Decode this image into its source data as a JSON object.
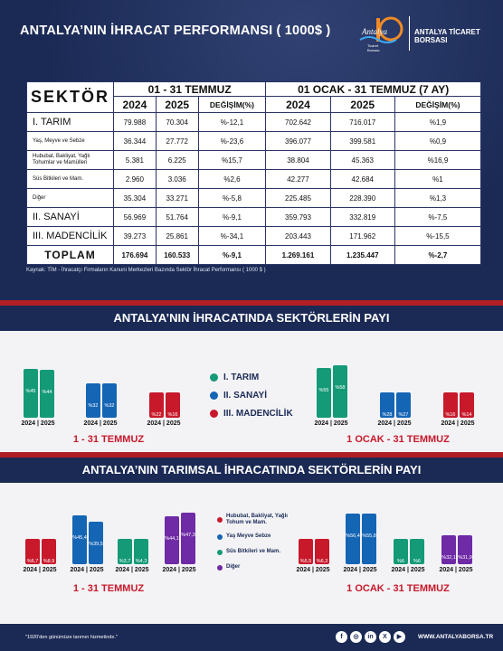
{
  "header": {
    "title": "ANTALYA’NIN İHRACAT PERFORMANSI ( 1000$ )",
    "org_name": "ANTALYA TİCARET BORSASI"
  },
  "table": {
    "sector_label": "SEKTÖR",
    "period1": "01 - 31 TEMMUZ",
    "period2": "01 OCAK - 31 TEMMUZ (7 AY)",
    "col_2024": "2024",
    "col_2025": "2025",
    "col_change": "DEĞİŞİM(%)",
    "rows": [
      {
        "name": "I. TARIM",
        "a": "79.988",
        "b": "70.304",
        "c": "%-12,1",
        "d": "702.642",
        "e": "716.017",
        "f": "%1,9"
      },
      {
        "name": "Yaş, Meyve ve Sebze",
        "a": "36.344",
        "b": "27.772",
        "c": "%-23,6",
        "d": "396.077",
        "e": "399.581",
        "f": "%0,9"
      },
      {
        "name": "Hububat, Bakliyat, Yağlı Tohumlar ve Mamülleri",
        "a": "5.381",
        "b": "6.225",
        "c": "%15,7",
        "d": "38.804",
        "e": "45.363",
        "f": "%16,9"
      },
      {
        "name": "Süs Bitkileri ve Mam.",
        "a": "2.960",
        "b": "3.036",
        "c": "%2,6",
        "d": "42.277",
        "e": "42.684",
        "f": "%1"
      },
      {
        "name": "Diğer",
        "a": "35.304",
        "b": "33.271",
        "c": "%-5,8",
        "d": "225.485",
        "e": "228.390",
        "f": "%1,3"
      },
      {
        "name": "II. SANAYİ",
        "a": "56.969",
        "b": "51.764",
        "c": "%-9,1",
        "d": "359.793",
        "e": "332.819",
        "f": "%-7,5"
      },
      {
        "name": "III. MADENCİLİK",
        "a": "39.273",
        "b": "25.861",
        "c": "%-34,1",
        "d": "203.443",
        "e": "171.962",
        "f": "%-15,5"
      }
    ],
    "total": {
      "name": "TOPLAM",
      "a": "176.694",
      "b": "160.533",
      "c": "%-9,1",
      "d": "1.269.161",
      "e": "1.235.447",
      "f": "%-2,7"
    }
  },
  "source": "Kaynak: TİM - İhracatçı Firmaların Kanuni Merkezleri Bazında Sektör İhracat Performansı ( 1000 $ )",
  "section1": {
    "title": "ANTALYA’NIN İHRACATINDA SEKTÖRLERİN PAYI",
    "legend": [
      "I. TARIM",
      "II. SANAYİ",
      "III. MADENCİLİK"
    ],
    "year_label": "2024 | 2025",
    "cap_left": "1 - 31 TEMMUZ",
    "cap_right": "1 OCAK - 31 TEMMUZ",
    "left": [
      {
        "p2024": 45,
        "p2025": 44,
        "l2024": "%45",
        "l2025": "%44"
      },
      {
        "p2024": 32,
        "p2025": 32,
        "l2024": "%32",
        "l2025": "%32"
      },
      {
        "p2024": 22,
        "p2025": 16,
        "l2024": "%22",
        "l2025": "%16"
      }
    ],
    "right": [
      {
        "p2024": 55,
        "p2025": 58,
        "l2024": "%55",
        "l2025": "%58"
      },
      {
        "p2024": 28,
        "p2025": 27,
        "l2024": "%28",
        "l2025": "%27"
      },
      {
        "p2024": 16,
        "p2025": 14,
        "l2024": "%16",
        "l2025": "%14"
      }
    ]
  },
  "section2": {
    "title": "ANTALYA’NIN TARIMSAL İHRACATINDA SEKTÖRLERİN PAYI",
    "legend": [
      "Hububat, Bakliyat, Yağlı Tohum ve Mam.",
      "Yaş Meyve Sebze",
      "Süs Bitkileri ve Mam.",
      "Diğer"
    ],
    "year_label": "2024 | 2025",
    "cap_left": "1 - 31 TEMMUZ",
    "cap_right": "1 OCAK - 31 TEMMUZ",
    "left": [
      {
        "p2024": 6.7,
        "p2025": 8.9,
        "l2024": "%6,7",
        "l2025": "%8,9"
      },
      {
        "p2024": 45.4,
        "p2025": 39.5,
        "l2024": "%45,4",
        "l2025": "%39,5"
      },
      {
        "p2024": 3.7,
        "p2025": 4.3,
        "l2024": "%3,7",
        "l2025": "%4,3"
      },
      {
        "p2024": 44.1,
        "p2025": 47.3,
        "l2024": "%44,1",
        "l2025": "%47,3"
      }
    ],
    "right": [
      {
        "p2024": 5.5,
        "p2025": 6.3,
        "l2024": "%5,5",
        "l2025": "%6,3"
      },
      {
        "p2024": 56.4,
        "p2025": 55.8,
        "l2024": "%56,4",
        "l2025": "%55,8"
      },
      {
        "p2024": 6,
        "p2025": 6,
        "l2024": "%6",
        "l2025": "%6"
      },
      {
        "p2024": 32.1,
        "p2025": 31.9,
        "l2024": "%32,1",
        "l2025": "%31,9"
      }
    ]
  },
  "footer": {
    "slogan": "\"1920'den günümüze tarımın hizmetinde.\"",
    "website": "WWW.ANTALYABORSA.TR",
    "icons": [
      "facebook-icon",
      "instagram-icon",
      "linkedin-icon",
      "x-icon",
      "youtube-icon"
    ]
  },
  "colors": {
    "navy": "#1b2a55",
    "red": "#c8192b",
    "green": "#149a77",
    "blue": "#1565b5",
    "purple": "#6f2aa6"
  }
}
